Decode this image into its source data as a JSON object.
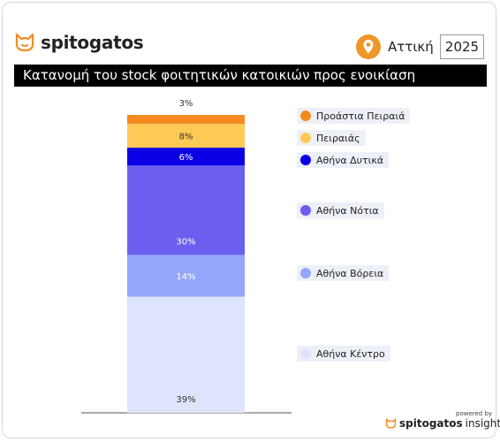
{
  "brand": {
    "name": "spitogatos",
    "footer_powered": "powered by",
    "footer_brand": "spitogatos",
    "footer_suffix": "insights"
  },
  "header": {
    "region": "Αττική",
    "year": "2025",
    "title": "Κατανομή του stock φοιτητικών κατοικιών προς ενοικίαση"
  },
  "colors": {
    "brand_orange": "#f58a1f",
    "pin_orange": "#f0962a",
    "axis": "#555555"
  },
  "chart_data": {
    "type": "bar",
    "stacked": true,
    "categories": [
      ""
    ],
    "series": [
      {
        "name": "Αθήνα Κέντρο",
        "values": [
          39
        ],
        "label": "39%",
        "color": "#dee4fb",
        "label_color": "#333333"
      },
      {
        "name": "Αθήνα Βόρεια",
        "values": [
          14
        ],
        "label": "14%",
        "color": "#93a6fb",
        "label_color": "#ffffff"
      },
      {
        "name": "Αθήνα Νότια",
        "values": [
          30
        ],
        "label": "30%",
        "color": "#6c5ff0",
        "label_color": "#ffffff"
      },
      {
        "name": "Αθήνα Δυτικά",
        "values": [
          6
        ],
        "label": "6%",
        "color": "#0a00e6",
        "label_color": "#ffffff"
      },
      {
        "name": "Πειραιάς",
        "values": [
          8
        ],
        "label": "8%",
        "color": "#ffc955",
        "label_color": "#333333"
      },
      {
        "name": "Προάστια Πειραιά",
        "values": [
          3
        ],
        "label": "3%",
        "color": "#f58a1f",
        "label_color": "#333333"
      }
    ],
    "ylim": [
      0,
      100
    ],
    "legend_position": "right",
    "grid": false
  }
}
